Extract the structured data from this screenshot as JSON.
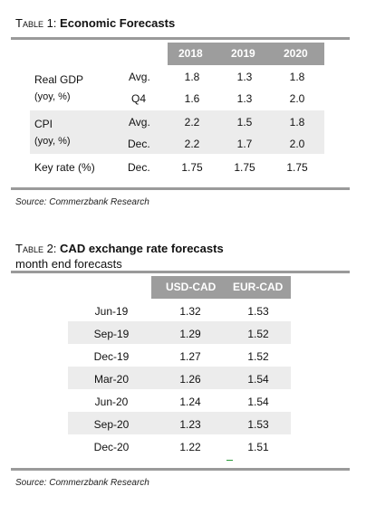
{
  "table1": {
    "prefix": "Table 1:",
    "title": "Economic Forecasts",
    "years": [
      "2018",
      "2019",
      "2020"
    ],
    "gdp_label_1": "Real GDP",
    "gdp_label_2": "(yoy, %)",
    "gdp_rows": [
      {
        "measure": "Avg.",
        "values": [
          "1.8",
          "1.3",
          "1.8"
        ]
      },
      {
        "measure": "Q4",
        "values": [
          "1.6",
          "1.3",
          "2.0"
        ]
      }
    ],
    "cpi_label_1": "CPI",
    "cpi_label_2": "(yoy, %)",
    "cpi_rows": [
      {
        "measure": "Avg.",
        "values": [
          "2.2",
          "1.5",
          "1.8"
        ]
      },
      {
        "measure": "Dec.",
        "values": [
          "2.2",
          "1.7",
          "2.0"
        ]
      }
    ],
    "key_rate": {
      "label": "Key rate (%)",
      "measure": "Dec.",
      "values": [
        "1.75",
        "1.75",
        "1.75"
      ]
    },
    "source": "Source: Commerzbank Research"
  },
  "table2": {
    "prefix": "Table 2:",
    "title": "CAD exchange rate forecasts",
    "subtitle": "month end forecasts",
    "columns": [
      "USD-CAD",
      "EUR-CAD"
    ],
    "rows": [
      {
        "date": "Jun-19",
        "usd": "1.32",
        "eur": "1.53"
      },
      {
        "date": "Sep-19",
        "usd": "1.29",
        "eur": "1.52"
      },
      {
        "date": "Dec-19",
        "usd": "1.27",
        "eur": "1.52"
      },
      {
        "date": "Mar-20",
        "usd": "1.26",
        "eur": "1.54"
      },
      {
        "date": "Jun-20",
        "usd": "1.24",
        "eur": "1.54"
      },
      {
        "date": "Sep-20",
        "usd": "1.23",
        "eur": "1.53"
      },
      {
        "date": "Dec-20",
        "usd": "1.22",
        "eur": "1.51"
      }
    ],
    "source": "Source: Commerzbank Research"
  }
}
